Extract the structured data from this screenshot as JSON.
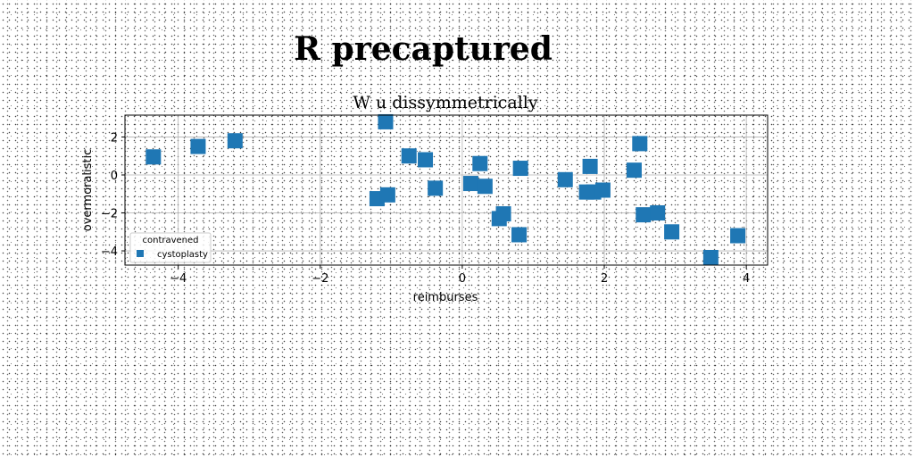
{
  "figure": {
    "title": "R precaptured"
  },
  "chart_data": {
    "type": "scatter",
    "title": "W u dissymmetrically",
    "xlabel": "reimburses",
    "ylabel": "overmoralistic",
    "xlim": [
      -4.75,
      4.3
    ],
    "ylim": [
      -4.75,
      3.15
    ],
    "xticks": [
      -4,
      -2,
      0,
      2,
      4
    ],
    "yticks": [
      2,
      0,
      -2,
      -4
    ],
    "xtick_labels": [
      "−4",
      "−2",
      "0",
      "2",
      "4"
    ],
    "ytick_labels": [
      "2",
      "0",
      "−2",
      "−4"
    ],
    "grid": true,
    "marker": "square",
    "color": "#1f77b4",
    "legend": {
      "title": "contravened",
      "location": "lower-left"
    },
    "series": [
      {
        "name": "cystoplasty",
        "points": [
          [
            -4.35,
            0.95
          ],
          [
            -3.72,
            1.5
          ],
          [
            -3.2,
            1.8
          ],
          [
            -1.08,
            2.8
          ],
          [
            -1.2,
            -1.25
          ],
          [
            -1.05,
            -1.05
          ],
          [
            -0.75,
            1.0
          ],
          [
            -0.52,
            0.8
          ],
          [
            -0.38,
            -0.7
          ],
          [
            0.12,
            -0.45
          ],
          [
            0.25,
            0.6
          ],
          [
            0.32,
            -0.6
          ],
          [
            0.52,
            -2.3
          ],
          [
            0.58,
            -2.05
          ],
          [
            0.8,
            -3.15
          ],
          [
            0.82,
            0.35
          ],
          [
            1.45,
            -0.25
          ],
          [
            1.75,
            -0.9
          ],
          [
            1.8,
            0.45
          ],
          [
            1.85,
            -0.9
          ],
          [
            1.98,
            -0.8
          ],
          [
            2.42,
            0.25
          ],
          [
            2.5,
            1.65
          ],
          [
            2.55,
            -2.1
          ],
          [
            2.75,
            -2.0
          ],
          [
            2.95,
            -3.0
          ],
          [
            3.5,
            -4.35
          ],
          [
            3.88,
            -3.2
          ]
        ]
      }
    ]
  }
}
